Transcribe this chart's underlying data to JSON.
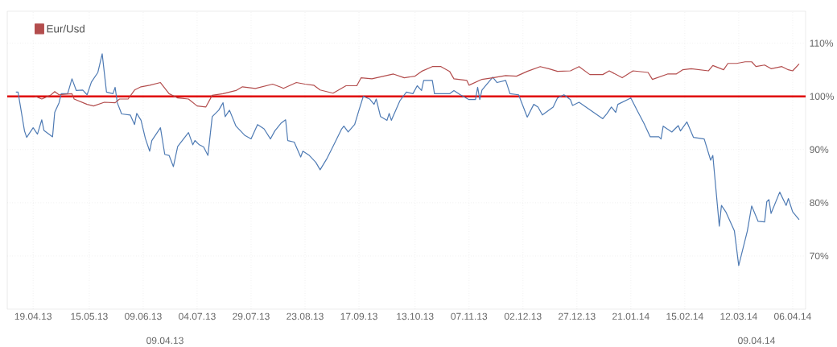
{
  "chart_data": {
    "type": "line",
    "xlim": [
      "2013-04-07",
      "2014-04-12"
    ],
    "ylim": [
      60,
      116
    ],
    "xticks": [
      {
        "value": "2013-04-19",
        "label": "19.04.13"
      },
      {
        "value": "2013-05-15",
        "label": "15.05.13"
      },
      {
        "value": "2013-06-09",
        "label": "09.06.13"
      },
      {
        "value": "2013-07-04",
        "label": "04.07.13"
      },
      {
        "value": "2013-07-29",
        "label": "29.07.13"
      },
      {
        "value": "2013-08-23",
        "label": "23.08.13"
      },
      {
        "value": "2013-09-17",
        "label": "17.09.13"
      },
      {
        "value": "2013-10-13",
        "label": "13.10.13"
      },
      {
        "value": "2013-11-07",
        "label": "07.11.13"
      },
      {
        "value": "2013-12-02",
        "label": "02.12.13"
      },
      {
        "value": "2013-12-27",
        "label": "27.12.13"
      },
      {
        "value": "2014-01-21",
        "label": "21.01.14"
      },
      {
        "value": "2014-02-15",
        "label": "15.02.14"
      },
      {
        "value": "2014-03-12",
        "label": "12.03.14"
      },
      {
        "value": "2014-04-06",
        "label": "06.04.14"
      }
    ],
    "yticks": [
      {
        "value": 70,
        "label": "70%"
      },
      {
        "value": 80,
        "label": "80%"
      },
      {
        "value": 90,
        "label": "90%"
      },
      {
        "value": 100,
        "label": "100%"
      },
      {
        "value": 110,
        "label": "110%"
      }
    ],
    "grid": true,
    "legend": "top left",
    "ref_lines": [
      {
        "axis": "y",
        "value": 100,
        "color": "#e00000"
      }
    ],
    "annotations": [
      "09.04.13",
      "09.04.14"
    ],
    "series": [
      {
        "color": "#4f7bb4",
        "x": [
          "2013-04-11",
          "2013-04-12",
          "2013-04-15",
          "2013-04-16",
          "2013-04-19",
          "2013-04-21",
          "2013-04-23",
          "2013-04-24",
          "2013-04-28",
          "2013-04-29",
          "2013-05-01",
          "2013-05-02",
          "2013-05-05",
          "2013-05-07",
          "2013-05-09",
          "2013-05-12",
          "2013-05-14",
          "2013-05-16",
          "2013-05-19",
          "2013-05-21",
          "2013-05-23",
          "2013-05-26",
          "2013-05-27",
          "2013-05-28",
          "2013-05-30",
          "2013-06-03",
          "2013-06-05",
          "2013-06-06",
          "2013-06-08",
          "2013-06-10",
          "2013-06-12",
          "2013-06-13",
          "2013-06-17",
          "2013-06-19",
          "2013-06-21",
          "2013-06-23",
          "2013-06-25",
          "2013-06-30",
          "2013-07-02",
          "2013-07-03",
          "2013-07-05",
          "2013-07-07",
          "2013-07-09",
          "2013-07-11",
          "2013-07-14",
          "2013-07-16",
          "2013-07-17",
          "2013-07-19",
          "2013-07-22",
          "2013-07-26",
          "2013-07-29",
          "2013-08-01",
          "2013-08-04",
          "2013-08-07",
          "2013-08-09",
          "2013-08-12",
          "2013-08-14",
          "2013-08-15",
          "2013-08-18",
          "2013-08-21",
          "2013-08-22",
          "2013-08-25",
          "2013-08-28",
          "2013-08-30",
          "2013-09-02",
          "2013-09-05",
          "2013-09-09",
          "2013-09-10",
          "2013-09-12",
          "2013-09-15",
          "2013-09-17",
          "2013-09-19",
          "2013-09-22",
          "2013-09-24",
          "2013-09-25",
          "2013-09-27",
          "2013-09-30",
          "2013-10-01",
          "2013-10-02",
          "2013-10-06",
          "2013-10-09",
          "2013-10-12",
          "2013-10-14",
          "2013-10-16",
          "2013-10-17",
          "2013-10-21",
          "2013-10-22",
          "2013-10-29",
          "2013-10-31",
          "2013-11-03",
          "2013-11-07",
          "2013-11-10",
          "2013-11-11",
          "2013-11-12",
          "2013-11-13",
          "2013-11-18",
          "2013-11-20",
          "2013-11-24",
          "2013-11-26",
          "2013-11-30",
          "2013-12-04",
          "2013-12-07",
          "2013-12-09",
          "2013-12-11",
          "2013-12-16",
          "2013-12-18",
          "2013-12-21",
          "2013-12-24",
          "2013-12-25",
          "2013-12-28",
          "2014-01-08",
          "2014-01-10",
          "2014-01-12",
          "2014-01-14",
          "2014-01-15",
          "2014-01-21",
          "2014-01-24",
          "2014-01-27",
          "2014-01-30",
          "2014-02-03",
          "2014-02-04",
          "2014-02-05",
          "2014-02-09",
          "2014-02-12",
          "2014-02-13",
          "2014-02-16",
          "2014-02-19",
          "2014-02-24",
          "2014-02-27",
          "2014-02-28",
          "2014-03-03",
          "2014-03-04",
          "2014-03-06",
          "2014-03-10",
          "2014-03-12",
          "2014-03-16",
          "2014-03-18",
          "2014-03-21",
          "2014-03-24",
          "2014-03-25",
          "2014-03-26",
          "2014-03-27",
          "2014-03-31",
          "2014-04-03",
          "2014-04-04",
          "2014-04-06",
          "2014-04-09"
        ],
        "values": [
          100.8,
          100.8,
          93.5,
          92.3,
          94.1,
          92.9,
          95.6,
          93.6,
          92.4,
          97.0,
          98.8,
          100.5,
          100.5,
          103.3,
          101.1,
          101.2,
          100.3,
          102.7,
          104.5,
          108.0,
          100.8,
          100.5,
          101.7,
          98.8,
          96.7,
          96.5,
          94.7,
          96.8,
          95.5,
          92.1,
          89.7,
          91.7,
          94.1,
          89.1,
          88.9,
          86.8,
          90.6,
          93.2,
          90.9,
          91.7,
          90.9,
          90.5,
          88.9,
          96.2,
          97.4,
          98.8,
          96.2,
          97.4,
          94.4,
          92.7,
          92.0,
          94.7,
          93.9,
          92.0,
          93.5,
          95.0,
          95.6,
          91.7,
          91.4,
          88.6,
          89.7,
          88.9,
          87.6,
          86.2,
          88.2,
          90.6,
          93.9,
          94.4,
          93.3,
          94.7,
          97.4,
          100.0,
          99.5,
          98.5,
          99.5,
          96.2,
          95.5,
          96.8,
          95.5,
          99.2,
          100.8,
          100.5,
          102.0,
          101.1,
          103.0,
          103.0,
          100.5,
          100.5,
          101.1,
          100.3,
          99.4,
          99.4,
          101.7,
          99.4,
          101.2,
          103.6,
          102.6,
          103.0,
          100.5,
          100.3,
          96.1,
          98.5,
          98.0,
          96.5,
          98.0,
          99.7,
          100.3,
          99.4,
          98.3,
          98.9,
          95.8,
          96.8,
          98.0,
          97.0,
          98.5,
          99.7,
          97.3,
          95.0,
          92.4,
          92.4,
          92.0,
          94.4,
          93.3,
          94.5,
          93.5,
          95.2,
          92.3,
          92.0,
          88.0,
          88.9,
          75.6,
          79.5,
          78.3,
          74.7,
          68.2,
          74.7,
          79.4,
          76.5,
          76.4,
          80.2,
          80.6,
          78.0,
          82.0,
          79.5,
          80.8,
          78.3,
          76.8
        ]
      },
      {
        "name": "Eur/Usd",
        "color": "#b34d4d",
        "x": [
          "2013-04-20",
          "2013-04-23",
          "2013-04-27",
          "2013-04-29",
          "2013-05-01",
          "2013-05-07",
          "2013-05-08",
          "2013-05-14",
          "2013-05-17",
          "2013-05-22",
          "2013-05-27",
          "2013-05-29",
          "2013-06-02",
          "2013-06-05",
          "2013-06-08",
          "2013-06-12",
          "2013-06-17",
          "2013-06-21",
          "2013-06-25",
          "2013-06-30",
          "2013-07-04",
          "2013-07-08",
          "2013-07-11",
          "2013-07-16",
          "2013-07-22",
          "2013-07-25",
          "2013-07-31",
          "2013-08-08",
          "2013-08-12",
          "2013-08-13",
          "2013-08-19",
          "2013-08-23",
          "2013-08-27",
          "2013-08-30",
          "2013-09-05",
          "2013-09-11",
          "2013-09-16",
          "2013-09-18",
          "2013-09-23",
          "2013-10-03",
          "2013-10-08",
          "2013-10-13",
          "2013-10-16",
          "2013-10-21",
          "2013-10-25",
          "2013-10-29",
          "2013-10-31",
          "2013-11-06",
          "2013-11-07",
          "2013-11-13",
          "2013-11-18",
          "2013-11-24",
          "2013-11-29",
          "2013-12-04",
          "2013-12-10",
          "2013-12-14",
          "2013-12-18",
          "2013-12-24",
          "2013-12-28",
          "2014-01-02",
          "2014-01-08",
          "2014-01-11",
          "2014-01-17",
          "2014-01-22",
          "2014-01-29",
          "2014-01-31",
          "2014-02-07",
          "2014-02-11",
          "2014-02-14",
          "2014-02-18",
          "2014-02-26",
          "2014-02-28",
          "2014-03-05",
          "2014-03-07",
          "2014-03-11",
          "2014-03-15",
          "2014-03-18",
          "2014-03-20",
          "2014-03-24",
          "2014-03-27",
          "2014-04-01",
          "2014-04-04",
          "2014-04-06",
          "2014-04-09"
        ],
        "values": [
          100.0,
          99.5,
          100.2,
          100.9,
          100.3,
          100.5,
          99.5,
          98.5,
          98.2,
          98.9,
          98.8,
          99.5,
          99.5,
          101.2,
          101.8,
          102.1,
          102.6,
          100.5,
          99.7,
          99.5,
          98.2,
          98.0,
          100.2,
          100.5,
          101.1,
          101.8,
          101.5,
          102.3,
          101.7,
          101.5,
          102.6,
          102.3,
          102.1,
          101.2,
          100.6,
          102.0,
          102.0,
          103.5,
          103.3,
          104.2,
          103.5,
          103.8,
          104.7,
          105.6,
          105.6,
          104.7,
          103.3,
          103.0,
          102.1,
          103.2,
          103.5,
          103.9,
          103.8,
          104.7,
          105.6,
          105.2,
          104.7,
          104.8,
          105.6,
          104.1,
          104.1,
          104.8,
          103.5,
          104.8,
          104.5,
          103.2,
          104.2,
          104.2,
          105.0,
          105.2,
          104.8,
          105.8,
          105.0,
          106.2,
          106.2,
          106.5,
          106.5,
          105.6,
          105.9,
          105.2,
          105.6,
          105.0,
          104.8,
          106.1
        ]
      }
    ]
  }
}
